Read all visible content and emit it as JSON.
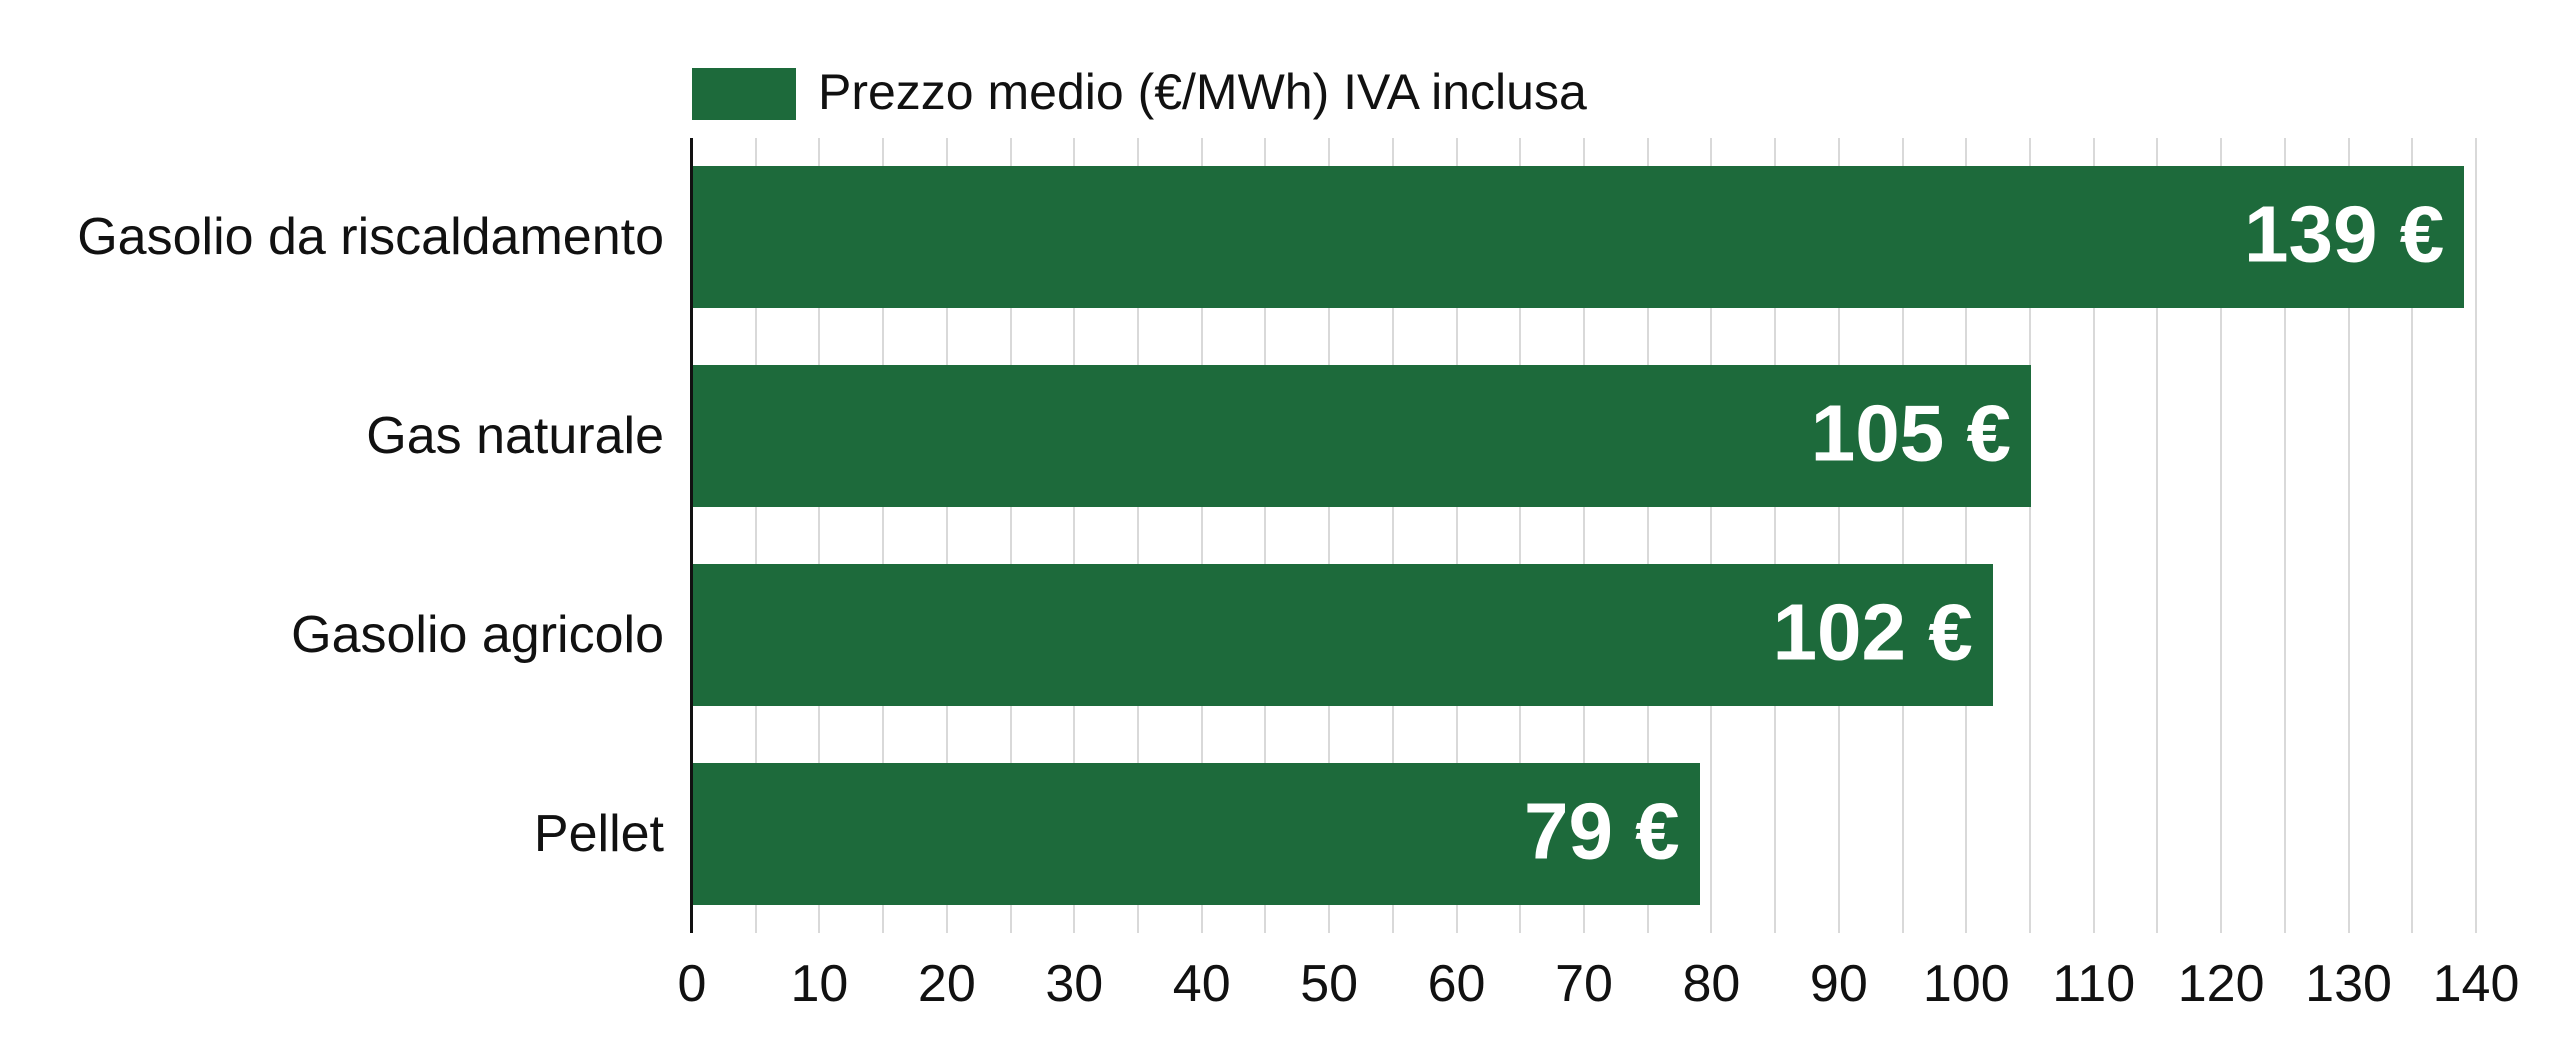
{
  "chart_data": {
    "type": "bar",
    "orientation": "horizontal",
    "title": "",
    "legend": {
      "label": "Prezzo medio (€/MWh) IVA inclusa",
      "position": "top",
      "swatch_color": "#1d6a3b"
    },
    "categories": [
      "Gasolio da riscaldamento",
      "Gas naturale",
      "Gasolio agricolo",
      "Pellet"
    ],
    "values": [
      139,
      105,
      102,
      79
    ],
    "value_labels": [
      "139 €",
      "105 €",
      "102 €",
      "79 €"
    ],
    "xlabel": "",
    "ylabel": "",
    "xlim": [
      0,
      140
    ],
    "x_ticks": [
      0,
      10,
      20,
      30,
      40,
      50,
      60,
      70,
      80,
      90,
      100,
      110,
      120,
      130,
      140
    ],
    "minor_grid_step": 5,
    "grid": "vertical-only",
    "colors": {
      "bar": "#1d6a3b",
      "grid": "#d9d9d9",
      "axis": "#111111",
      "tick_text": "#111111",
      "category_text": "#111111",
      "value_text": "#ffffff",
      "background": "#ffffff"
    }
  }
}
